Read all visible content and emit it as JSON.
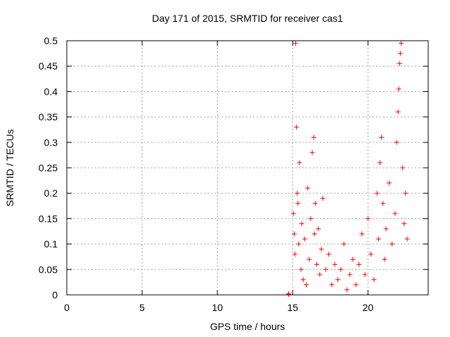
{
  "chart_data": {
    "type": "scatter",
    "title": "Day 171 of 2015, SRMTID for receiver cas1",
    "xlabel": "GPS time / hours",
    "ylabel": "SRMTID / TECUs",
    "xlim": [
      0,
      24
    ],
    "ylim": [
      0,
      0.5
    ],
    "xticks": [
      0,
      5,
      10,
      15,
      20
    ],
    "yticks": [
      0,
      0.05,
      0.1,
      0.15,
      0.2,
      0.25,
      0.3,
      0.35,
      0.4,
      0.45,
      0.5
    ],
    "xtick_labels": [
      "0",
      "5",
      "10",
      "15",
      "20"
    ],
    "ytick_labels": [
      "0",
      "0.05",
      "0.1",
      "0.15",
      "0.2",
      "0.25",
      "0.3",
      "0.35",
      "0.4",
      "0.45",
      "0.5"
    ],
    "grid": true,
    "marker": "+",
    "series": [
      {
        "name": "cas1",
        "color": "#ff0000",
        "x": [
          14.72,
          14.75,
          15.05,
          15.1,
          15.15,
          15.2,
          15.25,
          15.3,
          15.35,
          15.4,
          15.45,
          15.55,
          15.6,
          15.7,
          15.8,
          15.9,
          16.0,
          16.1,
          16.2,
          16.3,
          16.4,
          16.45,
          16.5,
          16.6,
          16.7,
          16.8,
          16.9,
          17.0,
          17.2,
          17.4,
          17.6,
          17.8,
          18.0,
          18.2,
          18.4,
          18.6,
          18.8,
          19.0,
          19.2,
          19.4,
          19.6,
          19.8,
          20.0,
          20.2,
          20.4,
          20.6,
          20.7,
          20.8,
          20.9,
          21.0,
          21.1,
          21.2,
          21.4,
          21.6,
          21.8,
          21.9,
          22.0,
          22.05,
          22.1,
          22.15,
          22.2,
          22.3,
          22.4,
          22.5,
          22.6
        ],
        "y": [
          0.002,
          0.001,
          0.16,
          0.12,
          0.08,
          0.495,
          0.33,
          0.2,
          0.18,
          0.1,
          0.26,
          0.05,
          0.14,
          0.03,
          0.11,
          0.02,
          0.21,
          0.07,
          0.15,
          0.28,
          0.31,
          0.12,
          0.18,
          0.06,
          0.13,
          0.04,
          0.09,
          0.19,
          0.05,
          0.08,
          0.02,
          0.06,
          0.03,
          0.05,
          0.1,
          0.01,
          0.04,
          0.07,
          0.02,
          0.06,
          0.12,
          0.04,
          0.15,
          0.08,
          0.03,
          0.2,
          0.11,
          0.26,
          0.31,
          0.18,
          0.07,
          0.13,
          0.22,
          0.1,
          0.16,
          0.3,
          0.36,
          0.405,
          0.455,
          0.475,
          0.495,
          0.25,
          0.14,
          0.2,
          0.11
        ]
      }
    ]
  }
}
